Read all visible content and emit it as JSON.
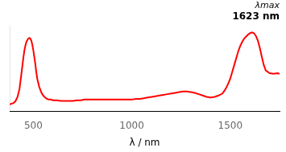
{
  "chart_data": {
    "type": "line",
    "xlabel": "λ / nm",
    "annotations": [
      "λmax",
      "1623 nm"
    ],
    "x": [
      380,
      390,
      400,
      410,
      420,
      430,
      440,
      450,
      455,
      460,
      465,
      470,
      475,
      480,
      485,
      490,
      495,
      500,
      505,
      510,
      515,
      520,
      530,
      540,
      550,
      560,
      570,
      580,
      590,
      600,
      620,
      640,
      660,
      680,
      700,
      720,
      740,
      760,
      780,
      800,
      820,
      840,
      860,
      880,
      900,
      920,
      940,
      960,
      980,
      1000,
      1020,
      1040,
      1060,
      1080,
      1100,
      1120,
      1140,
      1160,
      1180,
      1200,
      1220,
      1240,
      1260,
      1280,
      1300,
      1320,
      1340,
      1360,
      1380,
      1400,
      1420,
      1440,
      1460,
      1470,
      1480,
      1490,
      1500,
      1510,
      1520,
      1530,
      1540,
      1550,
      1560,
      1570,
      1580,
      1590,
      1600,
      1610,
      1620,
      1630,
      1640,
      1650,
      1660,
      1670,
      1680,
      1700,
      1720,
      1740,
      1750
    ],
    "values": [
      0.02,
      0.03,
      0.04,
      0.07,
      0.13,
      0.25,
      0.48,
      0.72,
      0.82,
      0.89,
      0.94,
      0.97,
      0.99,
      1.0,
      0.99,
      0.96,
      0.9,
      0.82,
      0.72,
      0.62,
      0.5,
      0.4,
      0.28,
      0.2,
      0.15,
      0.12,
      0.1,
      0.09,
      0.09,
      0.08,
      0.08,
      0.07,
      0.07,
      0.07,
      0.07,
      0.08,
      0.08,
      0.09,
      0.09,
      0.09,
      0.09,
      0.09,
      0.09,
      0.09,
      0.09,
      0.09,
      0.09,
      0.09,
      0.09,
      0.09,
      0.1,
      0.1,
      0.11,
      0.12,
      0.13,
      0.14,
      0.15,
      0.16,
      0.17,
      0.18,
      0.19,
      0.2,
      0.21,
      0.21,
      0.2,
      0.19,
      0.17,
      0.15,
      0.13,
      0.12,
      0.13,
      0.15,
      0.18,
      0.22,
      0.27,
      0.33,
      0.4,
      0.5,
      0.6,
      0.7,
      0.8,
      0.88,
      0.94,
      0.99,
      1.02,
      1.05,
      1.07,
      1.08,
      1.07,
      1.03,
      0.96,
      0.85,
      0.72,
      0.6,
      0.52,
      0.48,
      0.47,
      0.48,
      0.47
    ],
    "color": "#ff0000",
    "xlim": [
      380,
      1750
    ],
    "ylim": [
      -0.08,
      1.18
    ],
    "xticks": [
      500,
      1000,
      1500
    ],
    "yticks": [],
    "tick_labels": "x",
    "grid": false
  }
}
